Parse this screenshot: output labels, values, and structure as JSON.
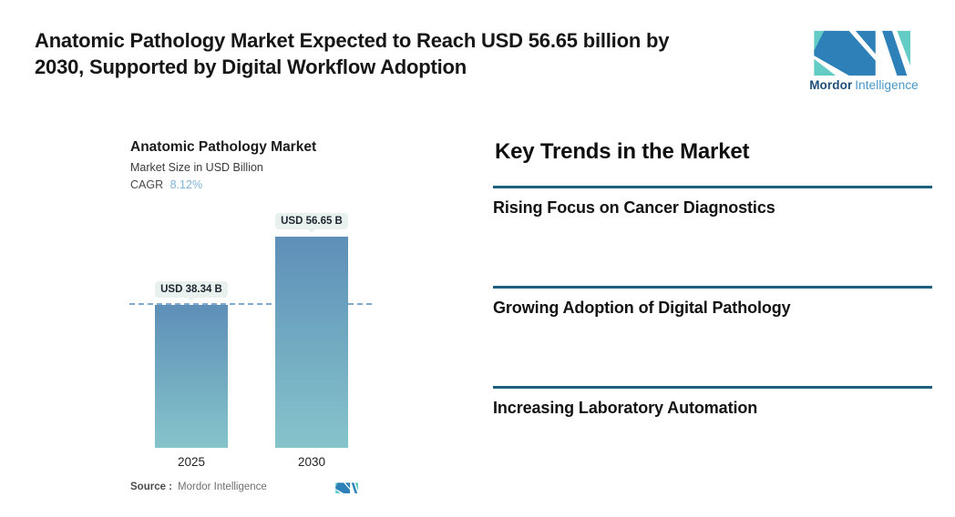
{
  "header": {
    "headline": "Anatomic Pathology Market Expected to Reach USD 56.65 billion by\n2030, Supported by Digital Workflow Adoption"
  },
  "brand": {
    "name_primary": "Mordor",
    "name_secondary": "Intelligence",
    "colors": {
      "teal": "#63CCC4",
      "blue": "#2E81B8",
      "name_primary": "#1F4E79",
      "name_secondary": "#4796C8"
    }
  },
  "chart": {
    "title": "Anatomic Pathology Market",
    "subtitle": "Market Size in USD Billion",
    "cagr_label": "CAGR",
    "cagr_value": "8.12%",
    "cagr_value_color": "#7FB3D7",
    "source_label": "Source :",
    "source_value": "Mordor Intelligence"
  },
  "chart_data": {
    "type": "bar",
    "title": "Anatomic Pathology Market",
    "ylabel": "Market Size in USD Billion",
    "unit": "USD Billion",
    "cagr_percent": 8.12,
    "categories": [
      "2025",
      "2030"
    ],
    "values": [
      38.34,
      56.65
    ],
    "value_labels": [
      "USD 38.34 B",
      "USD 56.65 B"
    ],
    "bar_gradient_top": "#5E8FB8",
    "bar_gradient_bottom": "#85C4CB",
    "reference_line": {
      "value": 38.34,
      "style": "dashed",
      "color": "#82AACF"
    }
  },
  "trends": {
    "heading": "Key Trends in the Market",
    "divider_color": "#1D5F7F",
    "items": [
      {
        "label": "Rising Focus on Cancer Diagnostics"
      },
      {
        "label": "Growing Adoption of Digital Pathology"
      },
      {
        "label": "Increasing Laboratory Automation"
      }
    ]
  }
}
